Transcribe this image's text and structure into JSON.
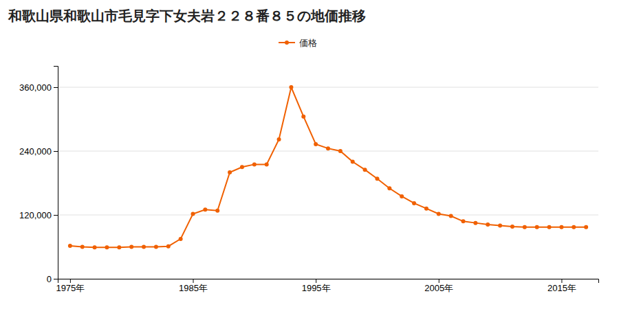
{
  "chart_data": {
    "type": "line",
    "title": "和歌山県和歌山市毛見字下女夫岩２２８番８５の地価推移",
    "x": [
      1975,
      1976,
      1977,
      1978,
      1979,
      1980,
      1981,
      1982,
      1983,
      1984,
      1985,
      1986,
      1987,
      1988,
      1989,
      1990,
      1991,
      1992,
      1993,
      1994,
      1995,
      1996,
      1997,
      1998,
      1999,
      2000,
      2001,
      2002,
      2003,
      2004,
      2005,
      2006,
      2007,
      2008,
      2009,
      2010,
      2011,
      2012,
      2013,
      2014,
      2015,
      2016,
      2017
    ],
    "series": [
      {
        "name": "価格",
        "color": "#f06000",
        "marker": "circle",
        "values": [
          62000,
          60000,
          59000,
          59000,
          59000,
          60000,
          60000,
          60000,
          61000,
          75000,
          122000,
          130000,
          128000,
          200000,
          210000,
          215000,
          215000,
          262000,
          360000,
          305000,
          253000,
          245000,
          240000,
          220000,
          205000,
          188000,
          170000,
          155000,
          142000,
          132000,
          122000,
          118000,
          108000,
          105000,
          102000,
          100000,
          98000,
          97000,
          97000,
          97000,
          97000,
          97000,
          97000
        ]
      }
    ],
    "xlim": [
      1974,
      2018
    ],
    "xticks": [
      {
        "value": 1975,
        "label": "1975年"
      },
      {
        "value": 1985,
        "label": "1985年"
      },
      {
        "value": 1995,
        "label": "1995年"
      },
      {
        "value": 2005,
        "label": "2005年"
      },
      {
        "value": 2015,
        "label": "2015年"
      }
    ],
    "ylim": [
      0,
      400000
    ],
    "yticks": [
      0,
      {
        "value": 120000,
        "label": "120,000"
      },
      {
        "value": 240000,
        "label": "240,000"
      },
      {
        "value": 360000,
        "label": "360,000"
      }
    ],
    "grid": true,
    "legend": "top"
  }
}
